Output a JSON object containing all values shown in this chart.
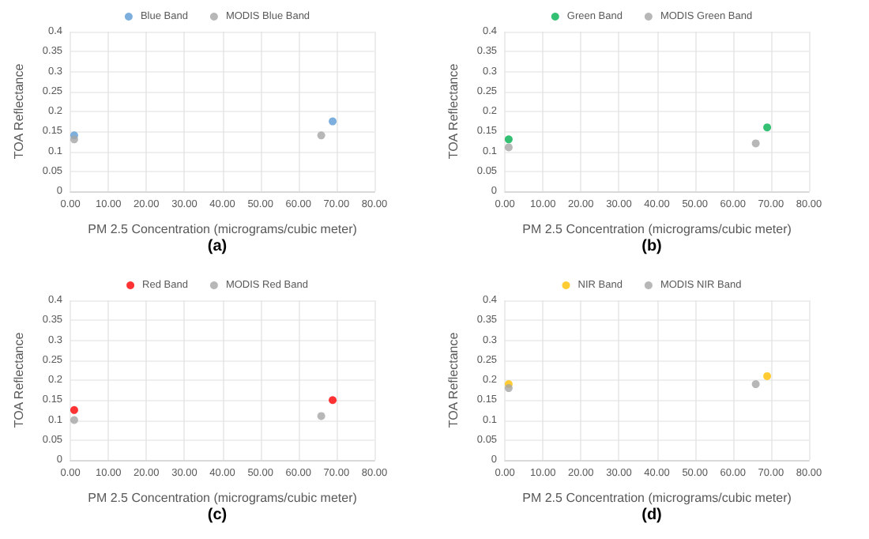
{
  "chart_data": [
    {
      "type": "scatter",
      "xlabel": "PM 2.5 Concentration (micrograms/cubic meter)",
      "ylabel": "TOA Reflectance",
      "annotations": [
        "(a)"
      ],
      "xlim": [
        0,
        80
      ],
      "xticks": [
        {
          "value": 0,
          "label": "0.00"
        },
        {
          "value": 10,
          "label": "10.00"
        },
        {
          "value": 20,
          "label": "20.00"
        },
        {
          "value": 30,
          "label": "30.00"
        },
        {
          "value": 40,
          "label": "40.00"
        },
        {
          "value": 50,
          "label": "50.00"
        },
        {
          "value": 60,
          "label": "60.00"
        },
        {
          "value": 70,
          "label": "70.00"
        },
        {
          "value": 80,
          "label": "80.00"
        }
      ],
      "ylim": [
        0,
        0.4
      ],
      "yticks": [
        0,
        0.05,
        0.1,
        0.15,
        0.2,
        0.25,
        0.3,
        0.35,
        0.4
      ],
      "grid": true,
      "legend": "top",
      "marker": "circle",
      "series": [
        {
          "name": "Blue Band",
          "color": "#5b9bd5",
          "x": [
            1,
            69
          ],
          "values": [
            0.14,
            0.175
          ]
        },
        {
          "name": "MODIS Blue Band",
          "color": "#a5a5a5",
          "x": [
            1,
            66
          ],
          "values": [
            0.13,
            0.14
          ]
        }
      ]
    },
    {
      "type": "scatter",
      "xlabel": "PM 2.5 Concentration (micrograms/cubic meter)",
      "ylabel": "TOA Reflectance",
      "annotations": [
        "(b)"
      ],
      "xlim": [
        0,
        80
      ],
      "xticks": [
        {
          "value": 0,
          "label": "0.00"
        },
        {
          "value": 10,
          "label": "10.00"
        },
        {
          "value": 20,
          "label": "20.00"
        },
        {
          "value": 30,
          "label": "30.00"
        },
        {
          "value": 40,
          "label": "40.00"
        },
        {
          "value": 50,
          "label": "50.00"
        },
        {
          "value": 60,
          "label": "60.00"
        },
        {
          "value": 70,
          "label": "70.00"
        },
        {
          "value": 80,
          "label": "80.00"
        }
      ],
      "ylim": [
        0,
        0.4
      ],
      "yticks": [
        0,
        0.05,
        0.1,
        0.15,
        0.2,
        0.25,
        0.3,
        0.35,
        0.4
      ],
      "grid": true,
      "legend": "top",
      "marker": "circle",
      "series": [
        {
          "name": "Green Band",
          "color": "#00b050",
          "x": [
            1,
            69
          ],
          "values": [
            0.13,
            0.16
          ]
        },
        {
          "name": "MODIS Green Band",
          "color": "#a5a5a5",
          "x": [
            1,
            66
          ],
          "values": [
            0.11,
            0.12
          ]
        }
      ]
    },
    {
      "type": "scatter",
      "xlabel": "PM 2.5 Concentration (micrograms/cubic meter)",
      "ylabel": "TOA Reflectance",
      "annotations": [
        "(c)"
      ],
      "xlim": [
        0,
        80
      ],
      "xticks": [
        {
          "value": 0,
          "label": "0.00"
        },
        {
          "value": 10,
          "label": "10.00"
        },
        {
          "value": 20,
          "label": "20.00"
        },
        {
          "value": 30,
          "label": "30.00"
        },
        {
          "value": 40,
          "label": "40.00"
        },
        {
          "value": 50,
          "label": "50.00"
        },
        {
          "value": 60,
          "label": "60.00"
        },
        {
          "value": 70,
          "label": "70.00"
        },
        {
          "value": 80,
          "label": "80.00"
        }
      ],
      "ylim": [
        0,
        0.4
      ],
      "yticks": [
        0,
        0.05,
        0.1,
        0.15,
        0.2,
        0.25,
        0.3,
        0.35,
        0.4
      ],
      "grid": true,
      "legend": "top",
      "marker": "circle",
      "series": [
        {
          "name": "Red Band",
          "color": "#ff0000",
          "x": [
            1,
            69
          ],
          "values": [
            0.125,
            0.15
          ]
        },
        {
          "name": "MODIS Red Band",
          "color": "#a5a5a5",
          "x": [
            1,
            66
          ],
          "values": [
            0.1,
            0.11
          ]
        }
      ]
    },
    {
      "type": "scatter",
      "xlabel": "PM 2.5 Concentration (micrograms/cubic meter)",
      "ylabel": "TOA Reflectance",
      "annotations": [
        "(d)"
      ],
      "xlim": [
        0,
        80
      ],
      "xticks": [
        {
          "value": 0,
          "label": "0.00"
        },
        {
          "value": 10,
          "label": "10.00"
        },
        {
          "value": 20,
          "label": "20.00"
        },
        {
          "value": 30,
          "label": "30.00"
        },
        {
          "value": 40,
          "label": "40.00"
        },
        {
          "value": 50,
          "label": "50.00"
        },
        {
          "value": 60,
          "label": "60.00"
        },
        {
          "value": 70,
          "label": "70.00"
        },
        {
          "value": 80,
          "label": "80.00"
        }
      ],
      "ylim": [
        0,
        0.4
      ],
      "yticks": [
        0,
        0.05,
        0.1,
        0.15,
        0.2,
        0.25,
        0.3,
        0.35,
        0.4
      ],
      "grid": true,
      "legend": "top",
      "marker": "circle",
      "series": [
        {
          "name": "NIR Band",
          "color": "#ffc000",
          "x": [
            1,
            69
          ],
          "values": [
            0.19,
            0.21
          ]
        },
        {
          "name": "MODIS NIR Band",
          "color": "#a5a5a5",
          "x": [
            1,
            66
          ],
          "values": [
            0.18,
            0.19
          ]
        }
      ]
    }
  ]
}
